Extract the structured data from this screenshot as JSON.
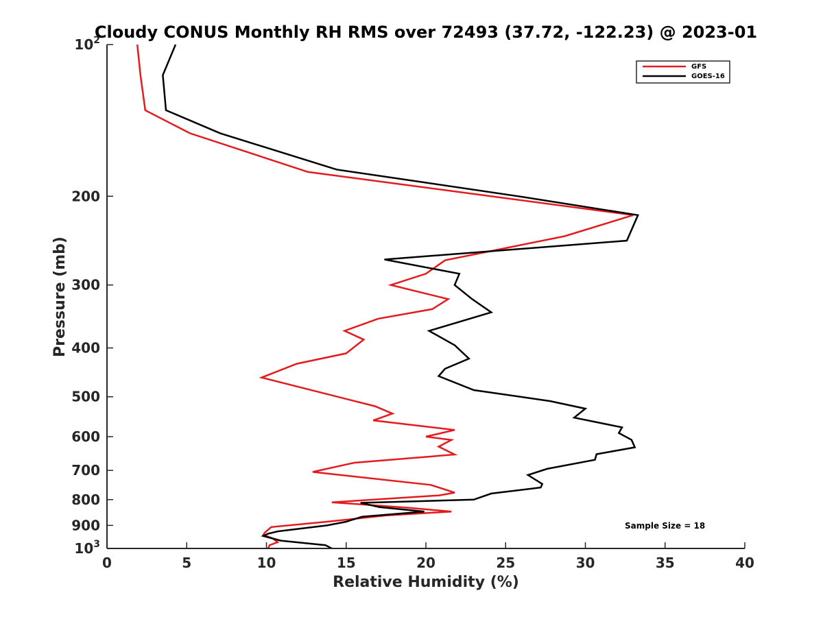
{
  "chart_data": {
    "type": "line",
    "title": "Cloudy CONUS Monthly RH RMS over 72493 (37.72, -122.23) @ 2023-01",
    "xlabel": "Relative Humidity (%)",
    "ylabel": "Pressure (mb)",
    "xlim": [
      0,
      40
    ],
    "ylim": [
      100,
      1000
    ],
    "y_scale": "log",
    "y_reversed": true,
    "x_ticks": [
      0,
      5,
      10,
      15,
      20,
      25,
      30,
      35,
      40
    ],
    "x_tick_labels": [
      "0",
      "5",
      "10",
      "15",
      "20",
      "25",
      "30",
      "35",
      "40"
    ],
    "y_ticks": [
      100,
      200,
      300,
      400,
      500,
      600,
      700,
      800,
      900,
      1000
    ],
    "y_tick_labels": [
      {
        "base": "10",
        "sup": "2"
      },
      {
        "text": "200"
      },
      {
        "text": "300"
      },
      {
        "text": "400"
      },
      {
        "text": "500"
      },
      {
        "text": "600"
      },
      {
        "text": "700"
      },
      {
        "text": "800"
      },
      {
        "text": "900"
      },
      {
        "base": "10",
        "sup": "3"
      }
    ],
    "grid": false,
    "legend_position": "top-right",
    "annotation": "Sample Size = 18",
    "series": [
      {
        "name": "GFS",
        "color": "#e41a1c",
        "points": [
          [
            1.9,
            100
          ],
          [
            2.1,
            115
          ],
          [
            2.4,
            135
          ],
          [
            5.2,
            150
          ],
          [
            12.6,
            179
          ],
          [
            33.0,
            218
          ],
          [
            28.7,
            240
          ],
          [
            21.2,
            268
          ],
          [
            20.0,
            285
          ],
          [
            17.8,
            300
          ],
          [
            21.4,
            320
          ],
          [
            20.4,
            335
          ],
          [
            17.0,
            350
          ],
          [
            14.9,
            370
          ],
          [
            16.1,
            385
          ],
          [
            15.0,
            410
          ],
          [
            11.9,
            430
          ],
          [
            9.7,
            458
          ],
          [
            16.8,
            522
          ],
          [
            17.9,
            540
          ],
          [
            16.7,
            557
          ],
          [
            21.8,
            582
          ],
          [
            20.0,
            600
          ],
          [
            21.6,
            609
          ],
          [
            20.8,
            628
          ],
          [
            21.8,
            651
          ],
          [
            15.5,
            676
          ],
          [
            12.9,
            705
          ],
          [
            20.3,
            748
          ],
          [
            21.8,
            775
          ],
          [
            20.8,
            785
          ],
          [
            14.1,
            810
          ],
          [
            18.8,
            830
          ],
          [
            21.6,
            845
          ],
          [
            17.5,
            860
          ],
          [
            13.8,
            885
          ],
          [
            10.3,
            907
          ],
          [
            9.9,
            930
          ],
          [
            9.8,
            940
          ],
          [
            10.4,
            955
          ],
          [
            10.7,
            972
          ],
          [
            10.2,
            985
          ],
          [
            10.1,
            1000
          ]
        ]
      },
      {
        "name": "GOES-16",
        "color": "#000000",
        "points": [
          [
            4.3,
            100
          ],
          [
            3.5,
            115
          ],
          [
            3.7,
            135
          ],
          [
            7.1,
            150
          ],
          [
            14.4,
            177
          ],
          [
            25.8,
            200
          ],
          [
            33.3,
            218
          ],
          [
            32.6,
            245
          ],
          [
            17.4,
            267
          ],
          [
            22.1,
            285
          ],
          [
            21.8,
            300
          ],
          [
            22.9,
            320
          ],
          [
            24.1,
            340
          ],
          [
            20.2,
            370
          ],
          [
            21.8,
            395
          ],
          [
            22.7,
            420
          ],
          [
            21.2,
            440
          ],
          [
            20.8,
            455
          ],
          [
            23.0,
            485
          ],
          [
            27.8,
            510
          ],
          [
            30.0,
            528
          ],
          [
            29.3,
            550
          ],
          [
            32.3,
            575
          ],
          [
            32.1,
            590
          ],
          [
            32.9,
            609
          ],
          [
            33.1,
            630
          ],
          [
            30.7,
            650
          ],
          [
            30.6,
            667
          ],
          [
            27.6,
            695
          ],
          [
            26.4,
            715
          ],
          [
            27.3,
            745
          ],
          [
            27.2,
            757
          ],
          [
            24.1,
            778
          ],
          [
            23.0,
            800
          ],
          [
            15.9,
            812
          ],
          [
            17.1,
            828
          ],
          [
            19.9,
            845
          ],
          [
            16.0,
            865
          ],
          [
            15.0,
            885
          ],
          [
            13.8,
            900
          ],
          [
            10.7,
            925
          ],
          [
            10.1,
            935
          ],
          [
            9.8,
            945
          ],
          [
            10.9,
            965
          ],
          [
            13.7,
            985
          ],
          [
            14.1,
            1000
          ]
        ]
      }
    ]
  }
}
